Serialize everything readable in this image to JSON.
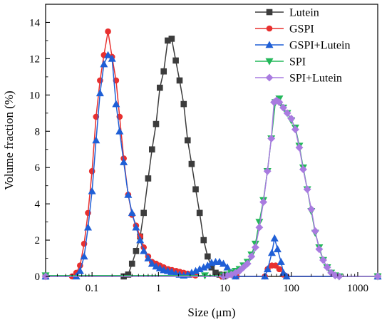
{
  "chart_data": {
    "type": "line",
    "xlabel": "Size (μm)",
    "ylabel": "Volume fraction (%)",
    "xscale": "log",
    "xlim": [
      0.02,
      2000
    ],
    "ylim": [
      0,
      15
    ],
    "xticks": [
      0.1,
      1,
      10,
      100,
      1000
    ],
    "xtick_labels": [
      "0.1",
      "1",
      "10",
      "100",
      "1000"
    ],
    "yticks": [
      0,
      2,
      4,
      6,
      8,
      10,
      12,
      14
    ],
    "ytick_labels": [
      "0",
      "2",
      "4",
      "6",
      "8",
      "10",
      "12",
      "14"
    ],
    "grid": false,
    "legend_position": "top-right",
    "series": [
      {
        "name": "Lutein",
        "color": "#3c3c3c",
        "marker": "square",
        "points": [
          [
            0.02,
            0.0
          ],
          [
            0.3,
            0.0
          ],
          [
            0.35,
            0.1
          ],
          [
            0.4,
            0.7
          ],
          [
            0.46,
            1.4
          ],
          [
            0.53,
            2.2
          ],
          [
            0.6,
            3.5
          ],
          [
            0.7,
            5.4
          ],
          [
            0.8,
            7.0
          ],
          [
            0.92,
            8.4
          ],
          [
            1.05,
            10.4
          ],
          [
            1.2,
            11.3
          ],
          [
            1.38,
            13.0
          ],
          [
            1.58,
            13.1
          ],
          [
            1.82,
            11.9
          ],
          [
            2.08,
            10.8
          ],
          [
            2.4,
            9.5
          ],
          [
            2.75,
            7.5
          ],
          [
            3.16,
            6.2
          ],
          [
            3.63,
            4.8
          ],
          [
            4.17,
            3.5
          ],
          [
            4.79,
            2.0
          ],
          [
            5.5,
            1.1
          ],
          [
            6.3,
            0.5
          ],
          [
            7.24,
            0.2
          ],
          [
            8.3,
            0.1
          ],
          [
            9.5,
            0.0
          ],
          [
            2000,
            0.0
          ]
        ]
      },
      {
        "name": "GSPI",
        "color": "#e8302f",
        "marker": "circle",
        "points": [
          [
            0.02,
            0.0
          ],
          [
            0.05,
            0.0
          ],
          [
            0.058,
            0.2
          ],
          [
            0.066,
            0.6
          ],
          [
            0.076,
            1.8
          ],
          [
            0.087,
            3.5
          ],
          [
            0.1,
            5.8
          ],
          [
            0.115,
            8.8
          ],
          [
            0.132,
            10.8
          ],
          [
            0.151,
            12.2
          ],
          [
            0.174,
            13.5
          ],
          [
            0.2,
            12.1
          ],
          [
            0.23,
            10.8
          ],
          [
            0.26,
            8.8
          ],
          [
            0.3,
            6.5
          ],
          [
            0.35,
            4.5
          ],
          [
            0.4,
            3.4
          ],
          [
            0.46,
            2.8
          ],
          [
            0.53,
            2.2
          ],
          [
            0.6,
            1.6
          ],
          [
            0.7,
            1.1
          ],
          [
            0.8,
            0.8
          ],
          [
            0.92,
            0.7
          ],
          [
            1.05,
            0.6
          ],
          [
            1.2,
            0.5
          ],
          [
            1.4,
            0.4
          ],
          [
            1.6,
            0.35
          ],
          [
            1.85,
            0.3
          ],
          [
            2.1,
            0.25
          ],
          [
            2.4,
            0.2
          ],
          [
            2.75,
            0.15
          ],
          [
            3.16,
            0.1
          ],
          [
            3.6,
            0.05
          ],
          [
            9.0,
            0.0
          ],
          [
            10.0,
            0.1
          ],
          [
            11.5,
            0.1
          ],
          [
            13.2,
            0.1
          ],
          [
            15,
            0.0
          ],
          [
            40,
            0.0
          ],
          [
            44,
            0.4
          ],
          [
            51,
            0.6
          ],
          [
            58,
            0.6
          ],
          [
            66,
            0.4
          ],
          [
            76,
            0.1
          ],
          [
            85,
            0.0
          ],
          [
            2000,
            0.0
          ]
        ]
      },
      {
        "name": "GSPI+Lutein",
        "color": "#1f5fd6",
        "marker": "triangle-up",
        "points": [
          [
            0.02,
            0.0
          ],
          [
            0.058,
            0.0
          ],
          [
            0.066,
            0.3
          ],
          [
            0.076,
            1.1
          ],
          [
            0.087,
            2.7
          ],
          [
            0.1,
            4.7
          ],
          [
            0.115,
            7.5
          ],
          [
            0.132,
            10.1
          ],
          [
            0.151,
            11.7
          ],
          [
            0.174,
            12.2
          ],
          [
            0.2,
            12.0
          ],
          [
            0.23,
            9.5
          ],
          [
            0.26,
            8.0
          ],
          [
            0.3,
            6.3
          ],
          [
            0.35,
            4.5
          ],
          [
            0.4,
            3.5
          ],
          [
            0.46,
            2.7
          ],
          [
            0.53,
            2.0
          ],
          [
            0.6,
            1.4
          ],
          [
            0.7,
            1.0
          ],
          [
            0.8,
            0.7
          ],
          [
            0.92,
            0.55
          ],
          [
            1.05,
            0.45
          ],
          [
            1.2,
            0.35
          ],
          [
            1.38,
            0.3
          ],
          [
            1.58,
            0.25
          ],
          [
            1.82,
            0.15
          ],
          [
            2.08,
            0.1
          ],
          [
            2.4,
            0.05
          ],
          [
            2.75,
            0.1
          ],
          [
            3.16,
            0.2
          ],
          [
            3.63,
            0.3
          ],
          [
            4.17,
            0.4
          ],
          [
            4.79,
            0.5
          ],
          [
            5.5,
            0.6
          ],
          [
            6.3,
            0.75
          ],
          [
            7.24,
            0.8
          ],
          [
            8.3,
            0.8
          ],
          [
            9.5,
            0.7
          ],
          [
            10.9,
            0.5
          ],
          [
            12.5,
            0.2
          ],
          [
            14.5,
            0.0
          ],
          [
            40,
            0.0
          ],
          [
            44,
            0.4
          ],
          [
            51,
            1.3
          ],
          [
            56,
            2.1
          ],
          [
            62,
            1.5
          ],
          [
            70,
            0.8
          ],
          [
            76,
            0.2
          ],
          [
            85,
            0.0
          ],
          [
            2000,
            0.0
          ]
        ]
      },
      {
        "name": "SPI",
        "color": "#23b85a",
        "marker": "triangle-down",
        "points": [
          [
            0.02,
            0.05
          ],
          [
            5.0,
            0.05
          ],
          [
            9.5,
            0.05
          ],
          [
            10.9,
            0.1
          ],
          [
            12.5,
            0.2
          ],
          [
            14.5,
            0.3
          ],
          [
            16.6,
            0.4
          ],
          [
            19,
            0.6
          ],
          [
            21.9,
            0.8
          ],
          [
            25.1,
            1.2
          ],
          [
            28.8,
            1.8
          ],
          [
            33,
            3.0
          ],
          [
            38,
            4.2
          ],
          [
            43.7,
            5.8
          ],
          [
            50,
            7.6
          ],
          [
            57.5,
            9.6
          ],
          [
            66,
            9.8
          ],
          [
            75.8,
            9.3
          ],
          [
            87,
            9.0
          ],
          [
            100,
            8.6
          ],
          [
            115,
            8.2
          ],
          [
            132,
            7.2
          ],
          [
            151,
            6.0
          ],
          [
            174,
            4.8
          ],
          [
            200,
            3.6
          ],
          [
            229,
            2.4
          ],
          [
            263,
            1.6
          ],
          [
            302,
            0.9
          ],
          [
            347,
            0.5
          ],
          [
            398,
            0.2
          ],
          [
            457,
            0.05
          ],
          [
            525,
            0.0
          ],
          [
            2000,
            0.0
          ]
        ]
      },
      {
        "name": "SPI+Lutein",
        "color": "#a97be0",
        "marker": "diamond",
        "points": [
          [
            0.02,
            0.0
          ],
          [
            9.5,
            0.0
          ],
          [
            10.9,
            0.05
          ],
          [
            12.5,
            0.1
          ],
          [
            14.5,
            0.2
          ],
          [
            16.6,
            0.3
          ],
          [
            19,
            0.5
          ],
          [
            21.9,
            0.7
          ],
          [
            25.1,
            1.1
          ],
          [
            28.8,
            1.6
          ],
          [
            33,
            2.7
          ],
          [
            38,
            4.1
          ],
          [
            43.7,
            5.8
          ],
          [
            50,
            7.6
          ],
          [
            55,
            9.6
          ],
          [
            60,
            9.7
          ],
          [
            66,
            9.6
          ],
          [
            75.8,
            9.3
          ],
          [
            87,
            9.0
          ],
          [
            100,
            8.7
          ],
          [
            115,
            8.1
          ],
          [
            132,
            7.1
          ],
          [
            151,
            5.9
          ],
          [
            174,
            4.8
          ],
          [
            200,
            3.7
          ],
          [
            229,
            2.5
          ],
          [
            263,
            1.5
          ],
          [
            302,
            0.9
          ],
          [
            347,
            0.5
          ],
          [
            398,
            0.2
          ],
          [
            457,
            0.05
          ],
          [
            525,
            0.0
          ],
          [
            2000,
            0.0
          ]
        ]
      }
    ]
  }
}
